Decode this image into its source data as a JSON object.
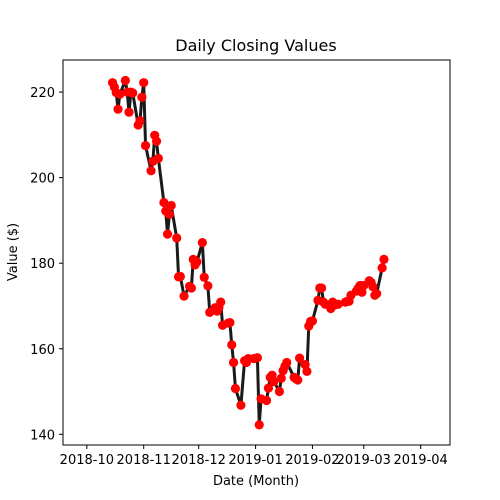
{
  "chart_data": {
    "type": "line",
    "title": "Daily Closing Values",
    "xlabel": "Date (Month)",
    "ylabel": "Value ($)",
    "x_tick_labels": [
      "2018-10",
      "2018-11",
      "2018-12",
      "2019-01",
      "2019-02",
      "2019-03",
      "2019-04"
    ],
    "y_tick_labels": [
      "140",
      "160",
      "180",
      "200",
      "220"
    ],
    "x_ticks": [
      "2018-10-01",
      "2018-11-01",
      "2018-12-01",
      "2019-01-01",
      "2019-02-01",
      "2019-03-01",
      "2019-04-01"
    ],
    "y_ticks": [
      140,
      160,
      180,
      200,
      220
    ],
    "xlim": [
      "2018-09-18",
      "2019-04-17"
    ],
    "ylim": [
      137.5,
      227.5
    ],
    "grid": false,
    "line_color": "#1a1a1a",
    "marker_color": "#ff0000",
    "series": [
      {
        "x": [
          "2018-10-15",
          "2018-10-16",
          "2018-10-17",
          "2018-10-18",
          "2018-10-19",
          "2018-10-22",
          "2018-10-23",
          "2018-10-24",
          "2018-10-25",
          "2018-10-26",
          "2018-10-29",
          "2018-10-30",
          "2018-10-31",
          "2018-11-01",
          "2018-11-02",
          "2018-11-05",
          "2018-11-06",
          "2018-11-07",
          "2018-11-08",
          "2018-11-09",
          "2018-11-12",
          "2018-11-13",
          "2018-11-14",
          "2018-11-15",
          "2018-11-16",
          "2018-11-19",
          "2018-11-20",
          "2018-11-21",
          "2018-11-23",
          "2018-11-26",
          "2018-11-27",
          "2018-11-28",
          "2018-11-29",
          "2018-11-30",
          "2018-12-03",
          "2018-12-04",
          "2018-12-06",
          "2018-12-07",
          "2018-12-10",
          "2018-12-11",
          "2018-12-12",
          "2018-12-13",
          "2018-12-14",
          "2018-12-17",
          "2018-12-18",
          "2018-12-19",
          "2018-12-20",
          "2018-12-21",
          "2018-12-24",
          "2018-12-26",
          "2018-12-27",
          "2018-12-28",
          "2018-12-31",
          "2019-01-02",
          "2019-01-03",
          "2019-01-04",
          "2019-01-07",
          "2019-01-08",
          "2019-01-09",
          "2019-01-10",
          "2019-01-11",
          "2019-01-14",
          "2019-01-15",
          "2019-01-16",
          "2019-01-17",
          "2019-01-18",
          "2019-01-22",
          "2019-01-23",
          "2019-01-24",
          "2019-01-25",
          "2019-01-28",
          "2019-01-29",
          "2019-01-30",
          "2019-01-31",
          "2019-02-01",
          "2019-02-04",
          "2019-02-05",
          "2019-02-06",
          "2019-02-07",
          "2019-02-08",
          "2019-02-11",
          "2019-02-12",
          "2019-02-13",
          "2019-02-14",
          "2019-02-15",
          "2019-02-19",
          "2019-02-20",
          "2019-02-21",
          "2019-02-22",
          "2019-02-25",
          "2019-02-26",
          "2019-02-27",
          "2019-02-28",
          "2019-03-01",
          "2019-03-04",
          "2019-03-05",
          "2019-03-06",
          "2019-03-07",
          "2019-03-08",
          "2019-03-11",
          "2019-03-12"
        ],
        "y": [
          222.2,
          221.2,
          219.9,
          216.0,
          219.5,
          222.7,
          220.0,
          215.3,
          220.0,
          219.8,
          212.3,
          213.3,
          218.8,
          222.2,
          207.5,
          201.6,
          203.8,
          209.9,
          208.5,
          204.5,
          194.2,
          192.2,
          186.8,
          191.4,
          193.5,
          185.9,
          176.8,
          176.9,
          172.3,
          174.6,
          174.2,
          180.9,
          179.6,
          180.3,
          184.8,
          176.7,
          174.7,
          168.5,
          169.6,
          168.8,
          169.6,
          170.9,
          165.5,
          166.0,
          166.1,
          160.9,
          156.8,
          150.7,
          146.8,
          157.2,
          156.8,
          157.7,
          157.7,
          157.9,
          142.2,
          148.3,
          147.9,
          150.8,
          153.3,
          153.8,
          152.3,
          150.0,
          153.1,
          154.9,
          155.9,
          156.8,
          153.3,
          153.0,
          152.7,
          157.8,
          156.3,
          154.7,
          165.3,
          166.4,
          166.5,
          171.3,
          174.2,
          174.2,
          170.9,
          170.4,
          169.4,
          170.9,
          170.2,
          170.4,
          170.4,
          170.9,
          171.1,
          171.1,
          172.5,
          173.5,
          174.2,
          174.8,
          173.2,
          174.8,
          175.9,
          175.5,
          174.5,
          172.5,
          172.9,
          178.9,
          180.9
        ]
      }
    ]
  }
}
